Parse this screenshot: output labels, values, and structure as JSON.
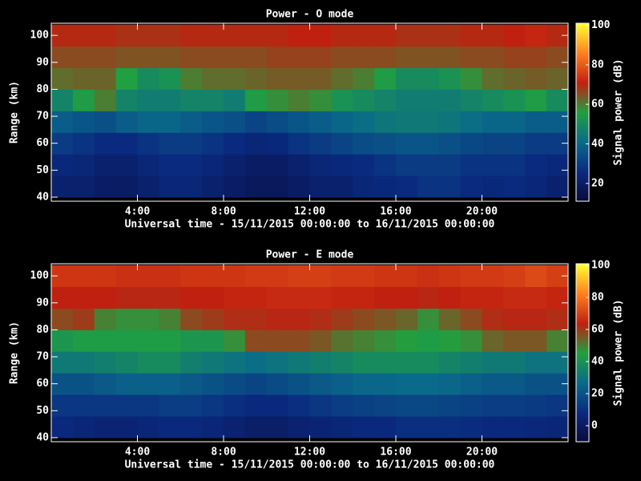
{
  "chart_data": [
    {
      "type": "heatmap",
      "title": "Power - O mode",
      "xlabel": "Universal time - 15/11/2015 00:00:00 to 16/11/2015 00:00:00",
      "ylabel": "Range (km)",
      "colorbar_label": "Signal power (dB)",
      "x": [
        0,
        1,
        2,
        3,
        4,
        5,
        6,
        7,
        8,
        9,
        10,
        11,
        12,
        13,
        14,
        15,
        16,
        17,
        18,
        19,
        20,
        21,
        22,
        23,
        24
      ],
      "y": [
        40,
        48,
        56,
        64,
        72,
        80,
        88,
        96,
        104
      ],
      "z": [
        [
          22,
          22,
          20,
          20,
          22,
          24,
          24,
          22,
          20,
          18,
          18,
          20,
          22,
          22,
          24,
          25,
          26,
          28,
          28,
          26,
          25,
          26,
          24,
          22
        ],
        [
          25,
          24,
          22,
          22,
          24,
          26,
          26,
          24,
          22,
          20,
          20,
          22,
          24,
          25,
          26,
          28,
          30,
          30,
          30,
          28,
          28,
          28,
          26,
          25
        ],
        [
          30,
          28,
          26,
          26,
          28,
          30,
          30,
          28,
          26,
          24,
          25,
          28,
          30,
          32,
          34,
          35,
          36,
          36,
          35,
          33,
          32,
          32,
          30,
          30
        ],
        [
          38,
          36,
          35,
          38,
          40,
          40,
          38,
          36,
          35,
          32,
          34,
          36,
          38,
          40,
          42,
          44,
          45,
          45,
          44,
          42,
          40,
          40,
          38,
          38
        ],
        [
          48,
          55,
          60,
          48,
          46,
          46,
          48,
          48,
          46,
          55,
          58,
          60,
          58,
          52,
          50,
          48,
          46,
          46,
          46,
          48,
          50,
          52,
          55,
          50
        ],
        [
          62,
          63,
          63,
          56,
          50,
          52,
          60,
          62,
          62,
          63,
          64,
          64,
          64,
          62,
          60,
          55,
          50,
          50,
          52,
          58,
          62,
          63,
          64,
          63
        ],
        [
          66,
          66,
          66,
          65,
          65,
          65,
          66,
          66,
          66,
          66,
          67,
          67,
          67,
          66,
          66,
          66,
          65,
          65,
          65,
          66,
          66,
          67,
          67,
          66
        ],
        [
          70,
          70,
          70,
          69,
          69,
          69,
          70,
          70,
          70,
          70,
          70,
          71,
          71,
          70,
          70,
          70,
          69,
          69,
          69,
          70,
          70,
          71,
          72,
          70
        ]
      ],
      "xlim": [
        0,
        24
      ],
      "ylim": [
        38.5,
        104.5
      ],
      "xticks": [
        {
          "value": 4,
          "label": "4:00"
        },
        {
          "value": 8,
          "label": "8:00"
        },
        {
          "value": 12,
          "label": "12:00"
        },
        {
          "value": 16,
          "label": "16:00"
        },
        {
          "value": 20,
          "label": "20:00"
        }
      ],
      "yticks": [
        40,
        50,
        60,
        70,
        80,
        90,
        100
      ],
      "clim": [
        11,
        101
      ],
      "cticks": [
        20,
        40,
        60,
        80,
        100
      ],
      "colorscale": [
        "#0a0a3a",
        "#0a2a80",
        "#0a6a8a",
        "#20a040",
        "#c02010",
        "#ff8020",
        "#ffff30"
      ]
    },
    {
      "type": "heatmap",
      "title": "Power - E mode",
      "xlabel": "Universal time - 15/11/2015 00:00:00 to 16/11/2015 00:00:00",
      "ylabel": "Range (km)",
      "colorbar_label": "Signal power (dB)",
      "x": [
        0,
        1,
        2,
        3,
        4,
        5,
        6,
        7,
        8,
        9,
        10,
        11,
        12,
        13,
        14,
        15,
        16,
        17,
        18,
        19,
        20,
        21,
        22,
        23,
        24
      ],
      "y": [
        40,
        48,
        56,
        64,
        72,
        80,
        88,
        96,
        104
      ],
      "z": [
        [
          8,
          6,
          5,
          5,
          6,
          8,
          8,
          6,
          4,
          2,
          2,
          4,
          5,
          6,
          8,
          8,
          10,
          10,
          10,
          9,
          8,
          8,
          7,
          6
        ],
        [
          12,
          12,
          12,
          12,
          12,
          14,
          14,
          12,
          10,
          8,
          8,
          10,
          12,
          14,
          15,
          16,
          17,
          17,
          16,
          15,
          14,
          14,
          13,
          12
        ],
        [
          20,
          20,
          22,
          24,
          24,
          24,
          22,
          20,
          18,
          16,
          18,
          20,
          22,
          24,
          26,
          26,
          27,
          27,
          26,
          24,
          22,
          22,
          20,
          20
        ],
        [
          32,
          32,
          34,
          36,
          38,
          38,
          34,
          32,
          30,
          28,
          30,
          32,
          34,
          36,
          38,
          38,
          38,
          38,
          36,
          34,
          32,
          32,
          30,
          30
        ],
        [
          42,
          44,
          44,
          44,
          44,
          44,
          42,
          42,
          48,
          58,
          58,
          58,
          56,
          52,
          50,
          48,
          46,
          44,
          46,
          48,
          54,
          56,
          56,
          50
        ],
        [
          58,
          60,
          50,
          48,
          48,
          50,
          58,
          60,
          62,
          62,
          63,
          63,
          62,
          60,
          58,
          56,
          54,
          48,
          54,
          58,
          62,
          63,
          63,
          62
        ],
        [
          64,
          64,
          64,
          63,
          63,
          63,
          64,
          64,
          65,
          65,
          66,
          66,
          66,
          65,
          65,
          64,
          64,
          63,
          64,
          65,
          65,
          66,
          66,
          65
        ],
        [
          68,
          68,
          68,
          67,
          67,
          67,
          68,
          68,
          68,
          69,
          69,
          70,
          70,
          69,
          69,
          68,
          68,
          67,
          68,
          69,
          69,
          70,
          72,
          70
        ]
      ],
      "xlim": [
        0,
        24
      ],
      "ylim": [
        38.5,
        104.5
      ],
      "xticks": [
        {
          "value": 4,
          "label": "4:00"
        },
        {
          "value": 8,
          "label": "8:00"
        },
        {
          "value": 12,
          "label": "12:00"
        },
        {
          "value": 16,
          "label": "16:00"
        },
        {
          "value": 20,
          "label": "20:00"
        }
      ],
      "yticks": [
        40,
        50,
        60,
        70,
        80,
        90,
        100
      ],
      "clim": [
        -10,
        101
      ],
      "cticks": [
        0,
        20,
        40,
        60,
        80,
        100
      ],
      "colorscale": [
        "#0a0a3a",
        "#0a2a80",
        "#0a6a8a",
        "#20a040",
        "#c02010",
        "#ff8020",
        "#ffff30"
      ]
    }
  ]
}
